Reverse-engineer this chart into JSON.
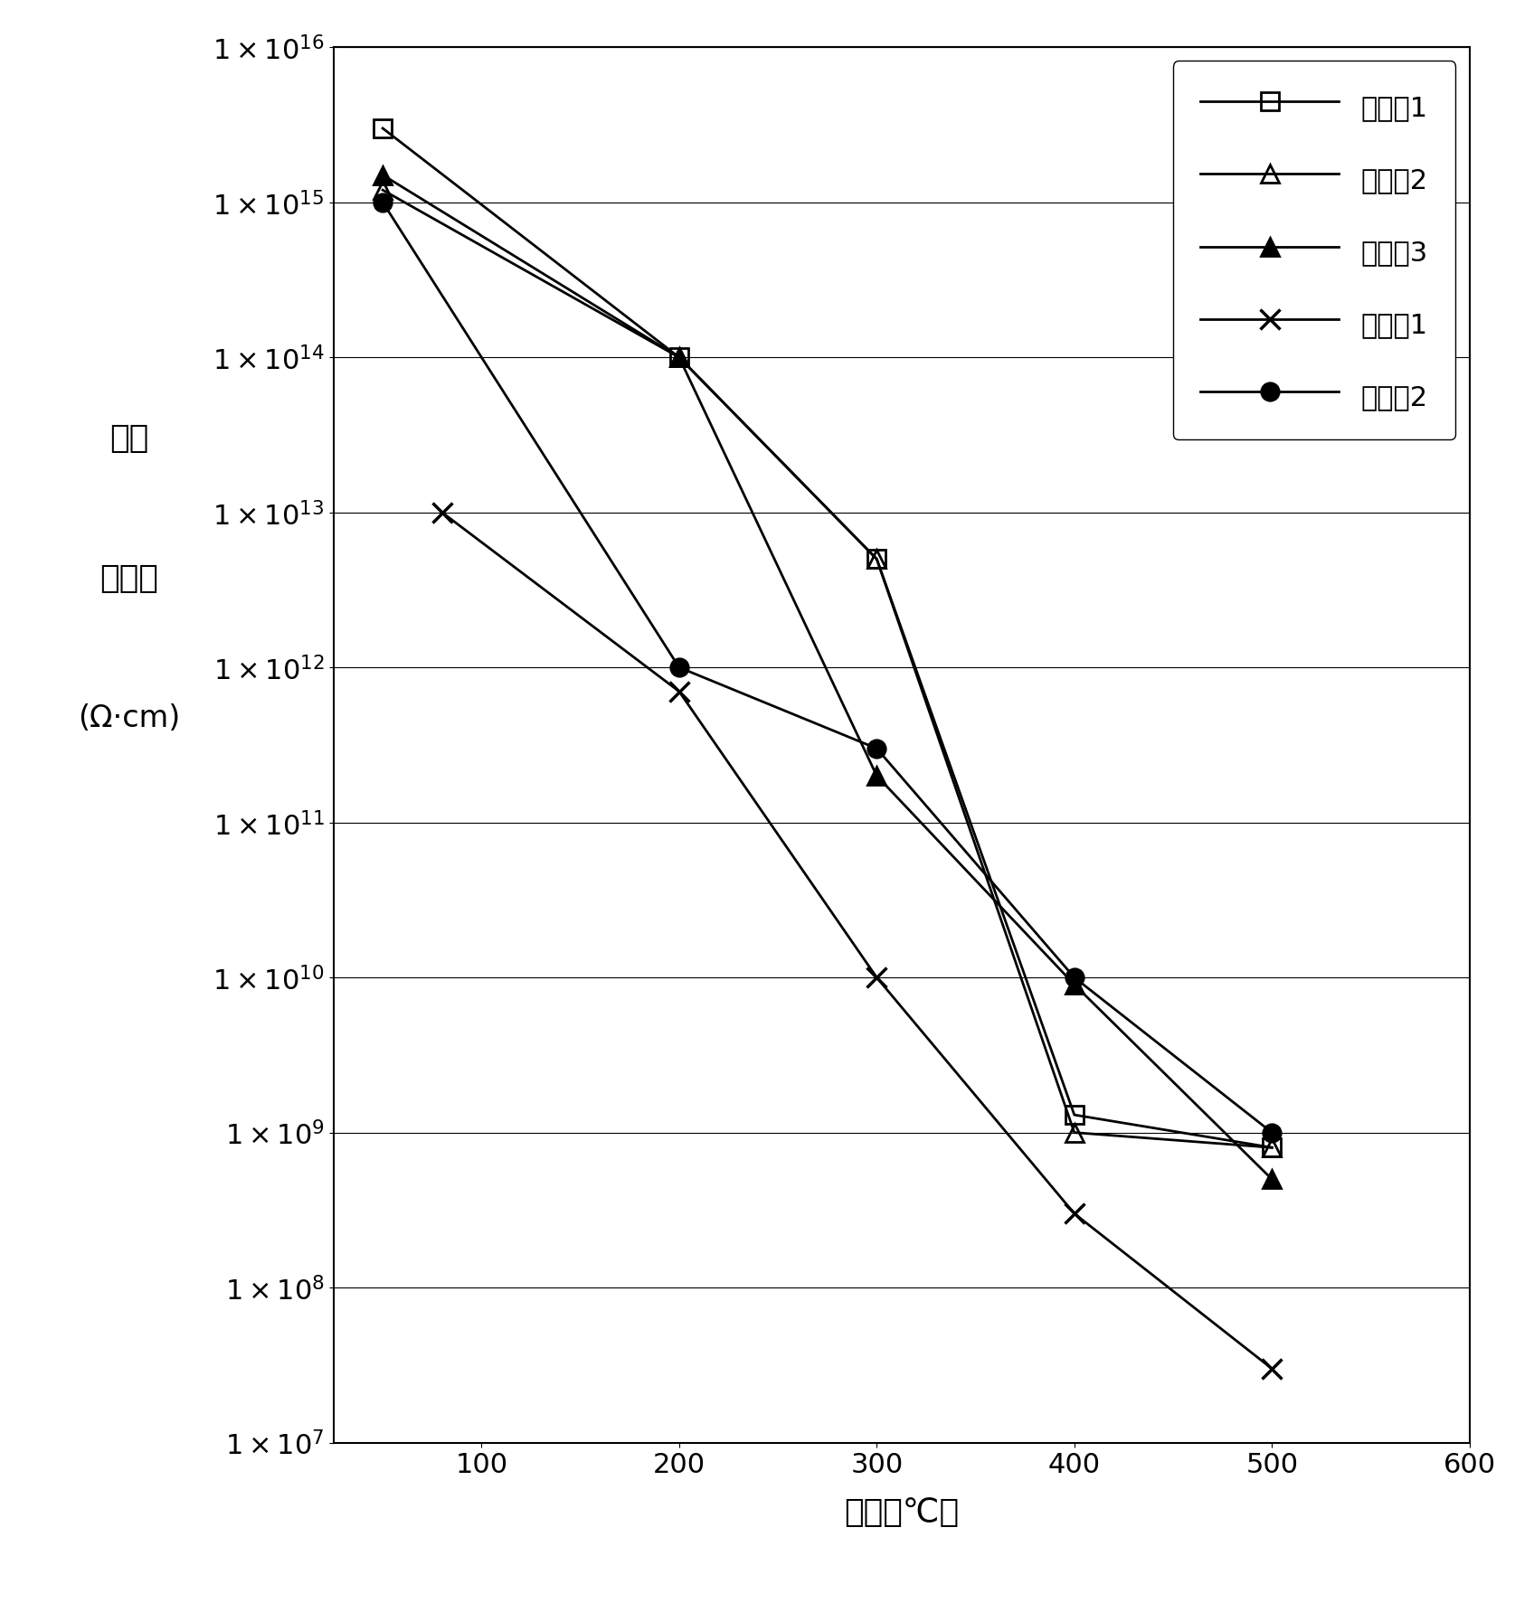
{
  "series": [
    {
      "label": "实施例1",
      "marker": "s",
      "fillstyle": "none",
      "x": [
        50,
        200,
        300,
        400,
        500
      ],
      "y": [
        3000000000000000.0,
        100000000000000.0,
        5000000000000.0,
        1300000000.0,
        800000000.0
      ]
    },
    {
      "label": "实施例2",
      "marker": "^",
      "fillstyle": "none",
      "x": [
        50,
        200,
        300,
        400,
        500
      ],
      "y": [
        1200000000000000.0,
        100000000000000.0,
        5000000000000.0,
        1000000000.0,
        800000000.0
      ]
    },
    {
      "label": "实施例3",
      "marker": "^",
      "fillstyle": "full",
      "x": [
        50,
        200,
        300,
        400,
        500
      ],
      "y": [
        1500000000000000.0,
        100000000000000.0,
        200000000000.0,
        9000000000.0,
        500000000.0
      ]
    },
    {
      "label": "比较例1",
      "marker": "x",
      "fillstyle": "none",
      "x": [
        80,
        200,
        300,
        400,
        500
      ],
      "y": [
        10000000000000.0,
        700000000000.0,
        10000000000.0,
        300000000.0,
        30000000.0
      ]
    },
    {
      "label": "比较例2",
      "marker": "o",
      "fillstyle": "full",
      "x": [
        50,
        200,
        300,
        400,
        500
      ],
      "y": [
        1000000000000000.0,
        1000000000000.0,
        300000000000.0,
        10000000000.0,
        1000000000.0
      ]
    }
  ],
  "xlabel": "温度（℃）",
  "ylabel_line1": "体积",
  "ylabel_line2": "电阔率",
  "ylabel_line3": "(Ω·cm)",
  "xlim": [
    25,
    600
  ],
  "ylim_exp_min": 7,
  "ylim_exp_max": 16,
  "xticks": [
    100,
    200,
    300,
    400,
    500,
    600
  ],
  "ytick_exponents": [
    7,
    8,
    9,
    10,
    11,
    12,
    13,
    14,
    15,
    16
  ],
  "line_color": "#000000",
  "background_color": "#ffffff",
  "fontsize_label": 26,
  "fontsize_tick": 22,
  "fontsize_legend": 22,
  "markersize": 14,
  "linewidth": 2.0
}
